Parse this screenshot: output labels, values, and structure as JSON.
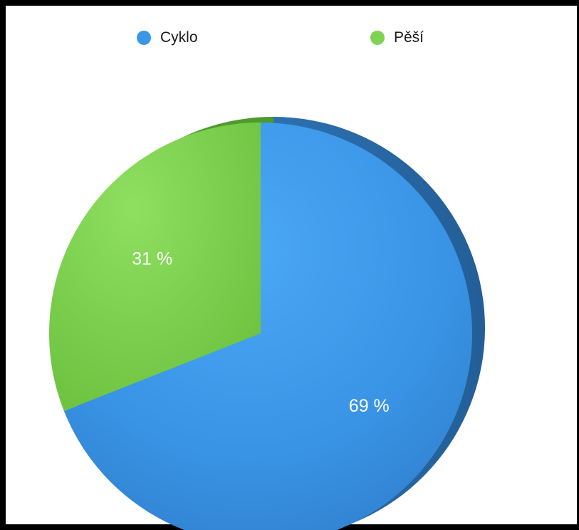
{
  "chart_data": {
    "type": "pie",
    "title": "",
    "legend_position": "top",
    "series": [
      {
        "name": "Cyklo",
        "value": 69,
        "label": "69 %",
        "color": "#3a97e8"
      },
      {
        "name": "Pěší",
        "value": 31,
        "label": "31 %",
        "color": "#7ed350"
      }
    ]
  }
}
